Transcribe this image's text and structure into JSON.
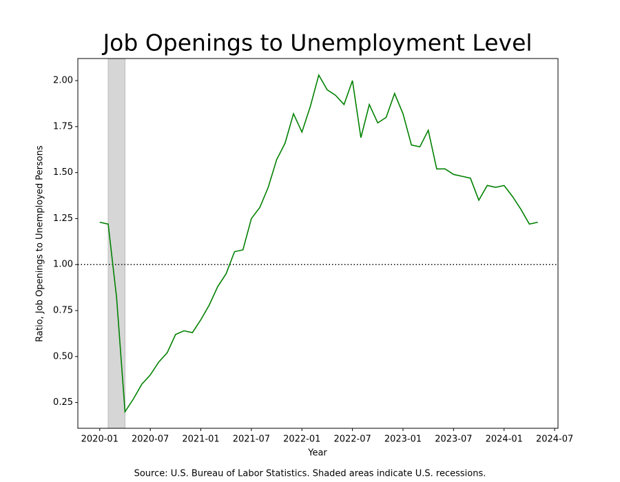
{
  "chart_data": {
    "type": "line",
    "title": "Job Openings to Unemployment Level",
    "x_label": "Year",
    "y_label": "Ratio, Job Openings to Unemployed Persons",
    "source": "Source: U.S. Bureau of Labor Statistics. Shaded areas indicate U.S. recessions.",
    "x": [
      "2020-01",
      "2020-02",
      "2020-03",
      "2020-04",
      "2020-05",
      "2020-06",
      "2020-07",
      "2020-08",
      "2020-09",
      "2020-10",
      "2020-11",
      "2020-12",
      "2021-01",
      "2021-02",
      "2021-03",
      "2021-04",
      "2021-05",
      "2021-06",
      "2021-07",
      "2021-08",
      "2021-09",
      "2021-10",
      "2021-11",
      "2021-12",
      "2022-01",
      "2022-02",
      "2022-03",
      "2022-04",
      "2022-05",
      "2022-06",
      "2022-07",
      "2022-08",
      "2022-09",
      "2022-10",
      "2022-11",
      "2022-12",
      "2023-01",
      "2023-02",
      "2023-03",
      "2023-04",
      "2023-05",
      "2023-06",
      "2023-07",
      "2023-08",
      "2023-09",
      "2023-10",
      "2023-11",
      "2023-12",
      "2024-01",
      "2024-02",
      "2024-03",
      "2024-04",
      "2024-05"
    ],
    "series": [
      {
        "name": "Ratio",
        "color": "#008000",
        "values": [
          1.23,
          1.22,
          0.82,
          0.2,
          0.27,
          0.35,
          0.4,
          0.47,
          0.52,
          0.62,
          0.64,
          0.63,
          0.7,
          0.78,
          0.88,
          0.95,
          1.07,
          1.08,
          1.25,
          1.31,
          1.42,
          1.57,
          1.66,
          1.82,
          1.72,
          1.86,
          2.03,
          1.95,
          1.92,
          1.87,
          2.0,
          1.69,
          1.87,
          1.77,
          1.8,
          1.93,
          1.82,
          1.65,
          1.64,
          1.73,
          1.52,
          1.52,
          1.49,
          1.48,
          1.47,
          1.35,
          1.43,
          1.42,
          1.43,
          1.37,
          1.3,
          1.22,
          1.23
        ]
      }
    ],
    "recessions": [
      [
        "2020-02",
        "2020-04"
      ]
    ],
    "reference_line": 1.0,
    "xlim": [
      "2019-10",
      "2024-07"
    ],
    "xticks": [
      "2020-01",
      "2020-07",
      "2021-01",
      "2021-07",
      "2022-01",
      "2022-07",
      "2023-01",
      "2023-07",
      "2024-01",
      "2024-07"
    ],
    "ylim": [
      0.11,
      2.12
    ],
    "yticks": [
      0.25,
      {
        "value": 0.5,
        "label": "0.50"
      },
      0.75,
      {
        "value": 1.0,
        "label": "1.00"
      },
      1.25,
      {
        "value": 1.5,
        "label": "1.50"
      },
      1.75,
      {
        "value": 2.0,
        "label": "2.00"
      }
    ]
  }
}
